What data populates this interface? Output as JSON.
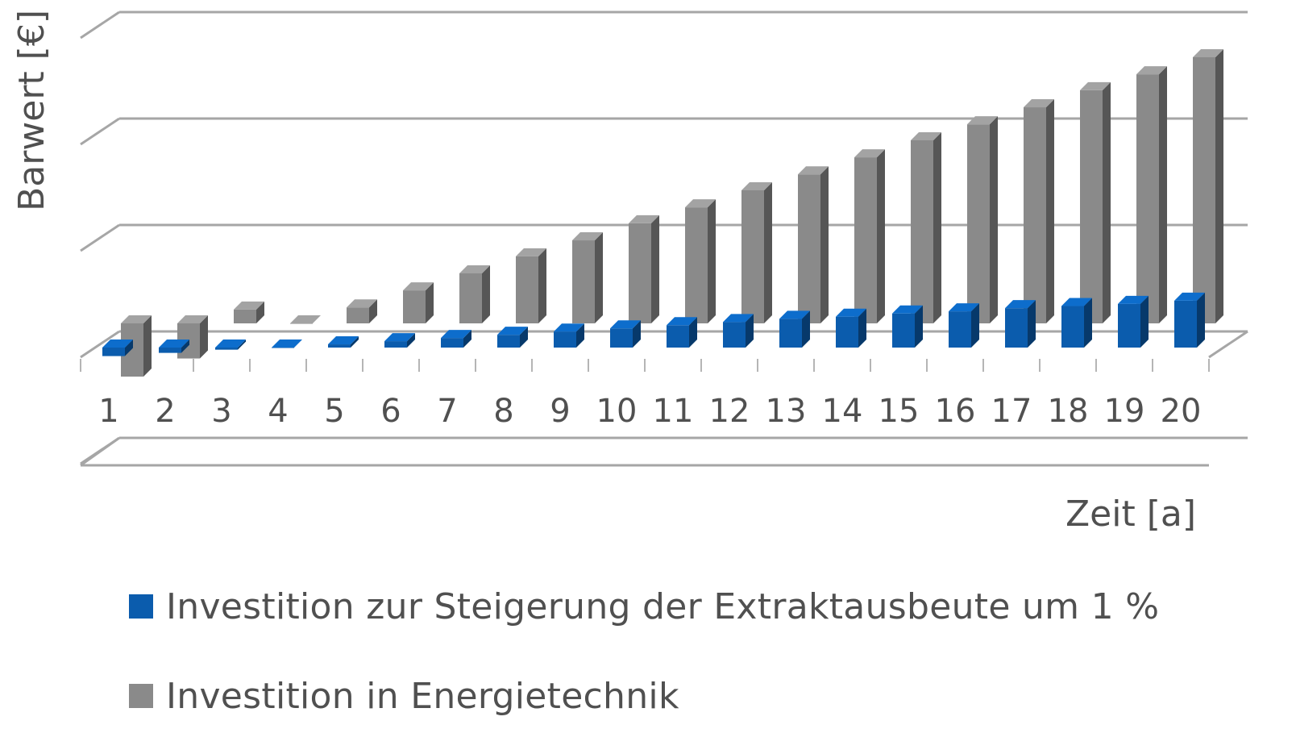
{
  "chart_data": {
    "type": "bar",
    "style": "3d-clustered-column",
    "title": "",
    "xlabel": "Zeit [a]",
    "ylabel": "Barwert [€]",
    "ylim": [
      -1,
      5
    ],
    "gridlines": true,
    "legend_position": "bottom-left",
    "categories": [
      "1",
      "2",
      "3",
      "4",
      "5",
      "6",
      "7",
      "8",
      "9",
      "10",
      "11",
      "12",
      "13",
      "14",
      "15",
      "16",
      "17",
      "18",
      "19",
      "20"
    ],
    "series": [
      {
        "name": "Investition zur Steigerung der Extraktausbeute um 1 %",
        "color": "#0b5cad",
        "values": [
          -0.08,
          -0.05,
          -0.02,
          0.0,
          0.03,
          0.06,
          0.09,
          0.12,
          0.15,
          0.18,
          0.21,
          0.24,
          0.27,
          0.29,
          0.32,
          0.34,
          0.37,
          0.39,
          0.41,
          0.44
        ]
      },
      {
        "name": "Investition in Energietechnik",
        "color": "#8a8a8a",
        "values": [
          -0.5,
          -0.33,
          0.13,
          0.0,
          0.15,
          0.31,
          0.47,
          0.63,
          0.78,
          0.94,
          1.09,
          1.25,
          1.4,
          1.56,
          1.72,
          1.87,
          2.03,
          2.19,
          2.34,
          2.5
        ]
      }
    ]
  }
}
